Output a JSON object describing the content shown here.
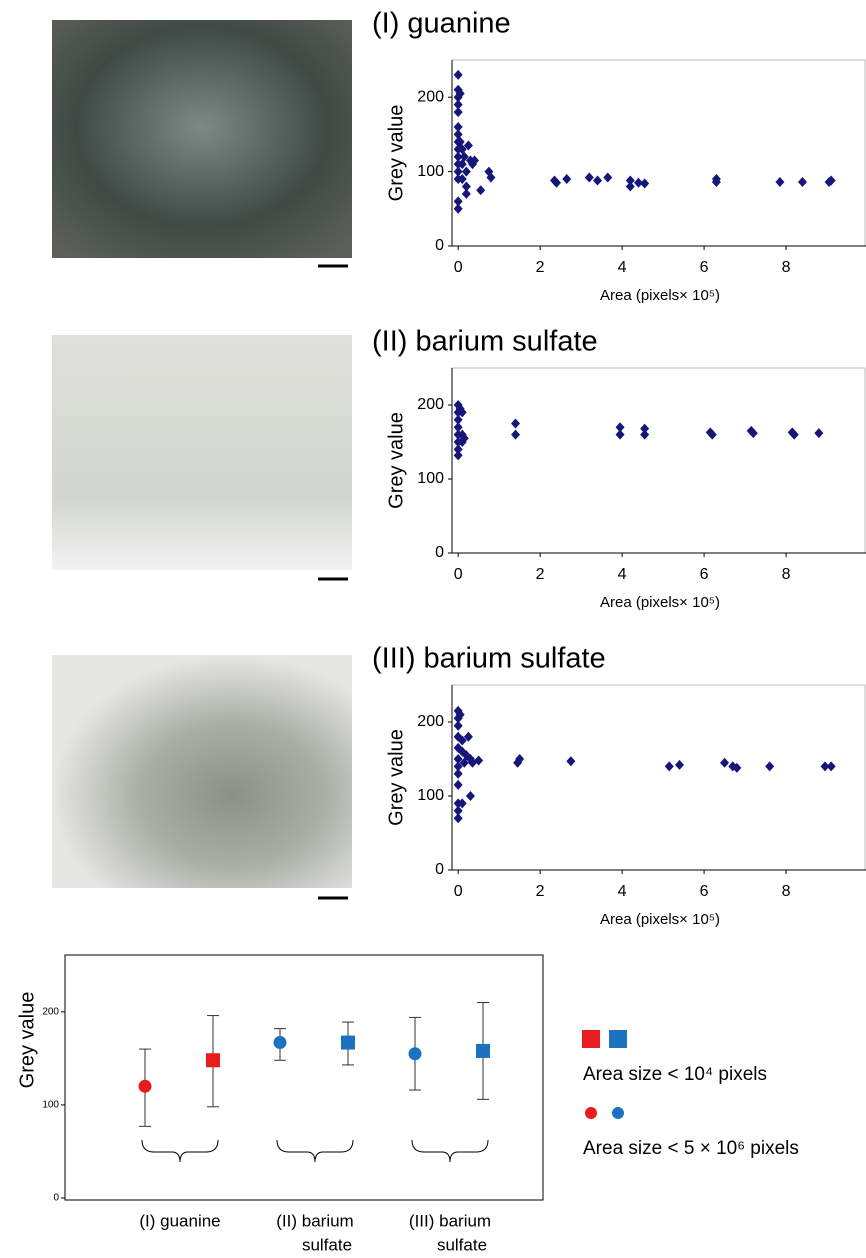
{
  "chart_data": [
    {
      "type": "scatter",
      "title": "(I) guanine",
      "y_label": "Grey value",
      "x_label": "Area (pixels× 10⁵)",
      "color": "#16167a",
      "xlim": [
        -0.15,
        9.95
      ],
      "ylim": [
        0,
        250
      ],
      "xticks": [
        0,
        2,
        4,
        6,
        8
      ],
      "yticks": [
        0,
        100,
        200
      ],
      "x": [
        0,
        0,
        0,
        0,
        0,
        0,
        0,
        0,
        0,
        0,
        0,
        0,
        0,
        0,
        0,
        0.05,
        0.05,
        0.1,
        0.1,
        0.1,
        0.15,
        0.2,
        0.2,
        0.2,
        0.25,
        0.3,
        0.35,
        0.4,
        0.55,
        0.75,
        0.8,
        2.35,
        2.4,
        2.65,
        3.2,
        3.4,
        3.65,
        4.2,
        4.2,
        4.4,
        4.55,
        6.3,
        6.3,
        7.85,
        8.4,
        9.05,
        9.1
      ],
      "values": [
        230,
        210,
        200,
        190,
        180,
        160,
        150,
        140,
        130,
        120,
        110,
        100,
        90,
        60,
        50,
        205,
        140,
        130,
        110,
        90,
        120,
        100,
        80,
        70,
        135,
        115,
        110,
        115,
        75,
        100,
        92,
        88,
        85,
        90,
        92,
        88,
        92,
        88,
        80,
        85,
        84,
        90,
        86,
        86,
        86,
        86,
        88
      ]
    },
    {
      "type": "scatter",
      "title": "(II) barium sulfate",
      "y_label": "Grey value",
      "x_label": "Area (pixels× 10⁵)",
      "color": "#16167a",
      "xlim": [
        -0.15,
        9.95
      ],
      "ylim": [
        0,
        250
      ],
      "xticks": [
        0,
        2,
        4,
        6,
        8
      ],
      "yticks": [
        0,
        100,
        200
      ],
      "x": [
        0,
        0,
        0,
        0,
        0,
        0,
        0,
        0,
        0.05,
        0.1,
        0.1,
        0.15,
        0.1,
        1.4,
        1.4,
        3.95,
        3.95,
        4.55,
        4.55,
        6.15,
        6.2,
        7.15,
        7.2,
        8.15,
        8.2,
        8.8
      ],
      "values": [
        200,
        190,
        180,
        170,
        160,
        150,
        140,
        132,
        195,
        190,
        160,
        155,
        150,
        175,
        160,
        170,
        160,
        168,
        160,
        163,
        160,
        165,
        162,
        163,
        160,
        162
      ]
    },
    {
      "type": "scatter",
      "title": "(III) barium sulfate",
      "y_label": "Grey value",
      "x_label": "Area (pixels× 10⁵)",
      "color": "#16167a",
      "xlim": [
        -0.15,
        9.95
      ],
      "ylim": [
        0,
        250
      ],
      "xticks": [
        0,
        2,
        4,
        6,
        8
      ],
      "yticks": [
        0,
        100,
        200
      ],
      "x": [
        0,
        0,
        0,
        0,
        0,
        0,
        0,
        0,
        0,
        0,
        0,
        0,
        0.05,
        0.1,
        0.1,
        0.1,
        0.15,
        0.2,
        0.25,
        0.3,
        0.3,
        0.35,
        0.5,
        1.45,
        1.5,
        2.75,
        5.15,
        5.4,
        6.5,
        6.7,
        6.8,
        7.6,
        8.95,
        9.1
      ],
      "values": [
        215,
        205,
        195,
        180,
        165,
        150,
        140,
        130,
        115,
        90,
        80,
        70,
        210,
        175,
        160,
        90,
        145,
        155,
        180,
        150,
        100,
        145,
        148,
        145,
        150,
        147,
        140,
        142,
        145,
        140,
        138,
        140,
        140,
        140
      ]
    },
    {
      "type": "errorbar",
      "y_label": "Grey value",
      "ylim": [
        0,
        260
      ],
      "yticks": [
        0,
        100,
        200
      ],
      "categories": [
        [
          "(I) guanine"
        ],
        [
          "(II) barium",
          "sulfate"
        ],
        [
          "(III) barium",
          "sulfate"
        ]
      ],
      "series": [
        {
          "name": "Area size < 5 × 10⁶ pixels",
          "marker": "circle",
          "colors": [
            "#e81c1c",
            "#1b73c0",
            "#1b73c0"
          ],
          "values": [
            120,
            167,
            155
          ],
          "lows": [
            77,
            148,
            116
          ],
          "highs": [
            160,
            182,
            194
          ]
        },
        {
          "name": "Area size < 10⁴ pixels",
          "marker": "square",
          "colors": [
            "#e81c1c",
            "#1b73c0",
            "#1b73c0"
          ],
          "values": [
            148,
            167,
            158
          ],
          "lows": [
            98,
            143,
            106
          ],
          "highs": [
            196,
            189,
            210
          ]
        }
      ]
    }
  ]
}
